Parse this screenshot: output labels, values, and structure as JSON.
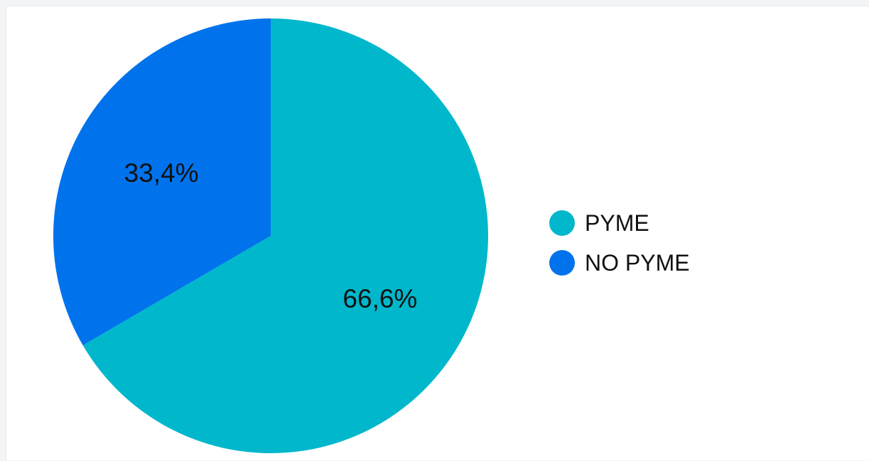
{
  "chart_data": {
    "type": "pie",
    "title": "",
    "slices": [
      {
        "label": "PYME",
        "value": 66.6,
        "display": "66,6%",
        "color": "#00b7cb"
      },
      {
        "label": "NO PYME",
        "value": 33.4,
        "display": "33,4%",
        "color": "#0073ec"
      }
    ],
    "start_angle": "12 o'clock",
    "direction": "clockwise",
    "legend": {
      "position": "right",
      "items": [
        {
          "label": "PYME",
          "color": "#00b7cb"
        },
        {
          "label": "NO PYME",
          "color": "#0073ec"
        }
      ]
    }
  }
}
